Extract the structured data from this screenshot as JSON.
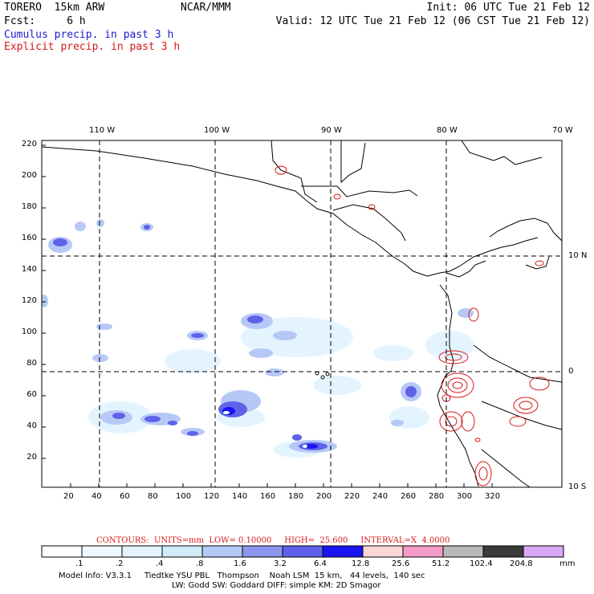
{
  "header": {
    "model_name": "TORERO  15km ARW",
    "org": "NCAR/MMM",
    "init": "Init: 06 UTC Tue 21 Feb 12",
    "fcst": "Fcst:     6 h",
    "valid": "Valid: 12 UTC Tue 21 Feb 12 (06 CST Tue 21 Feb 12)",
    "field1": "Cumulus precip. in past 3 h",
    "field2": "Explicit precip. in past 3 h"
  },
  "map": {
    "lon_labels": [
      "110 W",
      "100 W",
      "90 W",
      "80 W",
      "70 W"
    ],
    "lat_labels": [
      "10 N",
      "0",
      "10 S"
    ],
    "y_ticks": [
      "220",
      "200",
      "180",
      "160",
      "140",
      "120",
      "100",
      "80",
      "60",
      "40",
      "20"
    ],
    "x_ticks": [
      "20",
      "40",
      "60",
      "80",
      "100",
      "120",
      "140",
      "160",
      "180",
      "200",
      "220",
      "240",
      "260",
      "280",
      "300",
      "320"
    ]
  },
  "contour_info": "CONTOURS:  UNITS=mm  LOW= 0.10000     HIGH=  25.600     INTERVAL=X  4.0000",
  "colorbar": {
    "labels": [
      ".1",
      ".2",
      ".4",
      ".8",
      "1.6",
      "3.2",
      "6.4",
      "12.8",
      "25.6",
      "51.2",
      "102.4",
      "204.8"
    ],
    "unit": "mm",
    "colors": [
      "#ffffff",
      "#f0f8ff",
      "#e4f4ff",
      "#d2ecfa",
      "#b6c8f6",
      "#8c96ee",
      "#5f62e8",
      "#1a14f0",
      "#fcd6d6",
      "#f49ac6",
      "#b8b8b8",
      "#3a3a3a",
      "#d8a8f4"
    ]
  },
  "model_info": {
    "line1": "Model Info: V3.3.1     Tiedtke YSU PBL   Thompson    Noah LSM  15 km,   44 levels,  140 sec",
    "line2": "LW: Godd SW: Goddard DIFF: simple KM: 2D Smagor"
  }
}
